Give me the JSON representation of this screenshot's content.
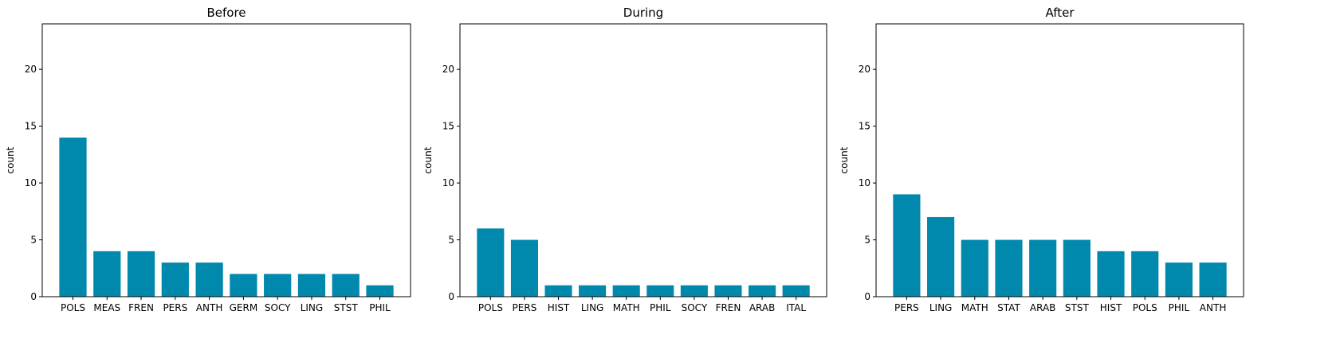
{
  "colors": {
    "bar": "#0088ad",
    "axis": "#000000",
    "background": "#ffffff"
  },
  "chart_data": [
    {
      "type": "bar",
      "title": "Before",
      "xlabel": "",
      "ylabel": "count",
      "ylim": [
        0,
        24
      ],
      "yticks": [
        0,
        5,
        10,
        15,
        20
      ],
      "grid": false,
      "categories": [
        "POLS",
        "MEAS",
        "FREN",
        "PERS",
        "ANTH",
        "GERM",
        "SOCY",
        "LING",
        "STST",
        "PHIL"
      ],
      "values": [
        14,
        4,
        4,
        3,
        3,
        2,
        2,
        2,
        2,
        1
      ]
    },
    {
      "type": "bar",
      "title": "During",
      "xlabel": "",
      "ylabel": "count",
      "ylim": [
        0,
        24
      ],
      "yticks": [
        0,
        5,
        10,
        15,
        20
      ],
      "grid": false,
      "categories": [
        "POLS",
        "PERS",
        "HIST",
        "LING",
        "MATH",
        "PHIL",
        "SOCY",
        "FREN",
        "ARAB",
        "ITAL"
      ],
      "values": [
        6,
        5,
        1,
        1,
        1,
        1,
        1,
        1,
        1,
        1
      ]
    },
    {
      "type": "bar",
      "title": "After",
      "xlabel": "",
      "ylabel": "count",
      "ylim": [
        0,
        24
      ],
      "yticks": [
        0,
        5,
        10,
        15,
        20
      ],
      "grid": false,
      "categories": [
        "PERS",
        "LING",
        "MATH",
        "STAT",
        "ARAB",
        "STST",
        "HIST",
        "POLS",
        "PHIL",
        "ANTH"
      ],
      "values": [
        9,
        7,
        5,
        5,
        5,
        5,
        4,
        4,
        3,
        3
      ]
    }
  ]
}
